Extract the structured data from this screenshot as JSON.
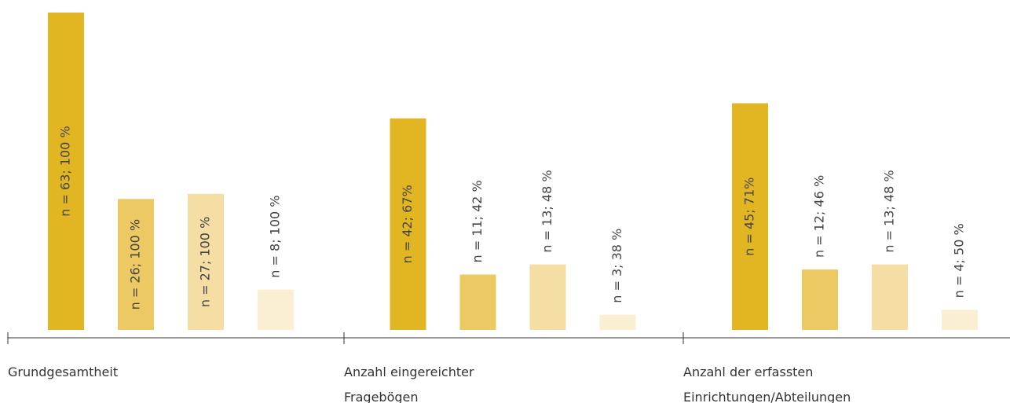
{
  "chart_data": {
    "type": "bar",
    "categories": [
      "Grundgesamtheit",
      "Anzahl eingereichter Fragebögen",
      "Anzahl der erfassten Einrichtungen/Abteilungen"
    ],
    "series": [
      {
        "color": "#e2b623",
        "values": [
          63,
          42,
          45
        ],
        "value_labels": [
          "n = 63; 100 %",
          "n = 42; 67%",
          "n = 45; 71%"
        ]
      },
      {
        "color": "#ecc962",
        "values": [
          26,
          11,
          12
        ],
        "value_labels": [
          "n = 26; 100 %",
          "n = 11; 42 %",
          "n = 12; 46 %"
        ]
      },
      {
        "color": "#f5dea3",
        "values": [
          27,
          13,
          13
        ],
        "value_labels": [
          "n = 27; 100 %",
          "n = 13; 48 %",
          "n = 13; 48 %"
        ]
      },
      {
        "color": "#faefd2",
        "values": [
          8,
          3,
          4
        ],
        "value_labels": [
          "n = 8; 100 %",
          "n = 3; 38 %",
          "n = 4; 50 %"
        ]
      }
    ]
  }
}
